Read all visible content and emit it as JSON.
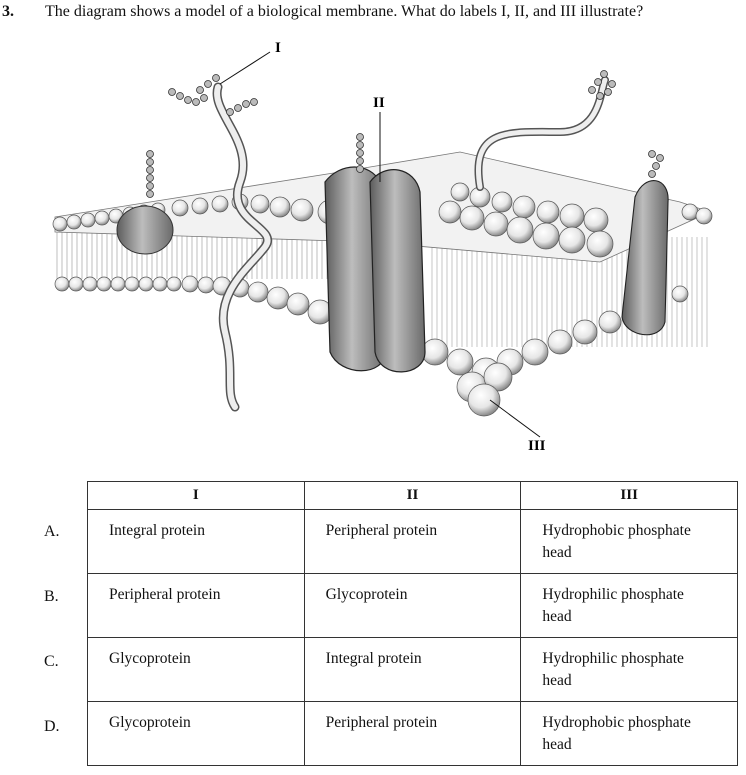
{
  "question": {
    "number": "3.",
    "text": "The diagram shows a model of a biological membrane.  What do labels I, II, and III illustrate?"
  },
  "figure": {
    "labels": {
      "i": "I",
      "ii": "II",
      "iii": "III"
    }
  },
  "table": {
    "headers": [
      "I",
      "II",
      "III"
    ],
    "rows": [
      {
        "letter": "A.",
        "cells": [
          "Integral protein",
          "Peripheral protein",
          "Hydrophobic phosphate head"
        ]
      },
      {
        "letter": "B.",
        "cells": [
          "Peripheral protein",
          "Glycoprotein",
          "Hydrophilic phosphate head"
        ]
      },
      {
        "letter": "C.",
        "cells": [
          "Glycoprotein",
          "Integral protein",
          "Hydrophilic phosphate head"
        ]
      },
      {
        "letter": "D.",
        "cells": [
          "Glycoprotein",
          "Peripheral protein",
          "Hydrophobic phosphate head"
        ]
      }
    ]
  }
}
